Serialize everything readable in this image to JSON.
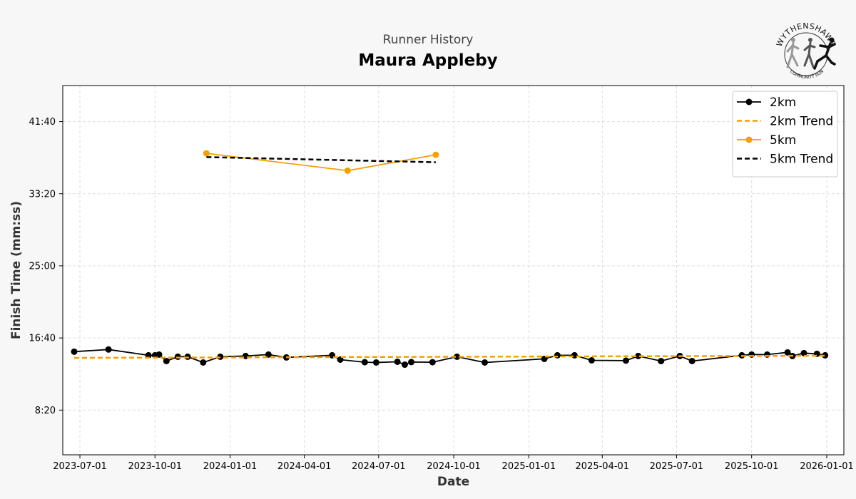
{
  "header": {
    "subtitle": "Runner History",
    "title": "Maura Appleby"
  },
  "logo": {
    "top_text": "WYTHENSHAWE",
    "bottom_text": "COMMUNITY RUN",
    "icon": "running-figures-logo"
  },
  "colors": {
    "series_2km": "#000000",
    "series_5km": "#f5a000",
    "background": "#f7f7f7",
    "plot_bg": "#ffffff",
    "grid": "#dddddd"
  },
  "chart_data": {
    "type": "line",
    "xlabel": "Date",
    "ylabel": "Finish Time (mm:ss)",
    "x_ticks": [
      "2023-07-01",
      "2023-10-01",
      "2024-01-01",
      "2024-04-01",
      "2024-07-01",
      "2024-10-01",
      "2025-01-01",
      "2025-04-01",
      "2025-07-01",
      "2025-10-01",
      "2026-01-01"
    ],
    "y_ticks": [
      "8:20",
      "16:40",
      "25:00",
      "33:20",
      "41:40"
    ],
    "xlim": [
      "2023-06-10",
      "2026-01-22"
    ],
    "ylim_seconds": [
      190,
      2750
    ],
    "grid": true,
    "legend_position": "top-right",
    "legend": [
      "2km",
      "2km Trend",
      "5km",
      "5km Trend"
    ],
    "series": [
      {
        "name": "2km",
        "style": "line-markers",
        "color": "#000000",
        "points": [
          {
            "x": "2023-06-24",
            "y": "15:05"
          },
          {
            "x": "2023-08-05",
            "y": "15:20"
          },
          {
            "x": "2023-09-23",
            "y": "14:40"
          },
          {
            "x": "2023-10-01",
            "y": "14:40"
          },
          {
            "x": "2023-10-06",
            "y": "14:45"
          },
          {
            "x": "2023-10-15",
            "y": "14:00"
          },
          {
            "x": "2023-10-29",
            "y": "14:30"
          },
          {
            "x": "2023-11-10",
            "y": "14:30"
          },
          {
            "x": "2023-11-29",
            "y": "13:50"
          },
          {
            "x": "2023-12-20",
            "y": "14:30"
          },
          {
            "x": "2024-01-20",
            "y": "14:35"
          },
          {
            "x": "2024-02-17",
            "y": "14:45"
          },
          {
            "x": "2024-03-10",
            "y": "14:25"
          },
          {
            "x": "2024-05-05",
            "y": "14:40"
          },
          {
            "x": "2024-05-15",
            "y": "14:10"
          },
          {
            "x": "2024-06-14",
            "y": "13:52"
          },
          {
            "x": "2024-06-28",
            "y": "13:50"
          },
          {
            "x": "2024-07-24",
            "y": "13:55"
          },
          {
            "x": "2024-08-02",
            "y": "13:35"
          },
          {
            "x": "2024-08-10",
            "y": "13:53"
          },
          {
            "x": "2024-09-05",
            "y": "13:52"
          },
          {
            "x": "2024-10-05",
            "y": "14:30"
          },
          {
            "x": "2024-11-08",
            "y": "13:50"
          },
          {
            "x": "2025-01-20",
            "y": "14:15"
          },
          {
            "x": "2025-02-05",
            "y": "14:40"
          },
          {
            "x": "2025-02-26",
            "y": "14:40"
          },
          {
            "x": "2025-03-19",
            "y": "14:05"
          },
          {
            "x": "2025-04-30",
            "y": "14:03"
          },
          {
            "x": "2025-05-15",
            "y": "14:35"
          },
          {
            "x": "2025-06-12",
            "y": "14:00"
          },
          {
            "x": "2025-07-05",
            "y": "14:35"
          },
          {
            "x": "2025-07-20",
            "y": "14:00"
          },
          {
            "x": "2025-09-19",
            "y": "14:40"
          },
          {
            "x": "2025-10-01",
            "y": "14:45"
          },
          {
            "x": "2025-10-20",
            "y": "14:45"
          },
          {
            "x": "2025-11-14",
            "y": "15:00"
          },
          {
            "x": "2025-11-20",
            "y": "14:35"
          },
          {
            "x": "2025-12-04",
            "y": "14:55"
          },
          {
            "x": "2025-12-20",
            "y": "14:50"
          },
          {
            "x": "2025-12-30",
            "y": "14:40"
          }
        ]
      },
      {
        "name": "2km Trend",
        "style": "dashed",
        "color": "#f5a000",
        "points": [
          {
            "x": "2023-06-24",
            "y": "14:22"
          },
          {
            "x": "2025-12-30",
            "y": "14:37"
          }
        ]
      },
      {
        "name": "5km",
        "style": "line-markers",
        "color": "#f5a000",
        "points": [
          {
            "x": "2023-12-03",
            "y": "38:00"
          },
          {
            "x": "2024-05-24",
            "y": "36:00"
          },
          {
            "x": "2024-09-09",
            "y": "37:50"
          }
        ]
      },
      {
        "name": "5km Trend",
        "style": "dashed",
        "color": "#000000",
        "points": [
          {
            "x": "2023-12-03",
            "y": "37:34"
          },
          {
            "x": "2024-09-09",
            "y": "36:58"
          }
        ]
      }
    ]
  }
}
